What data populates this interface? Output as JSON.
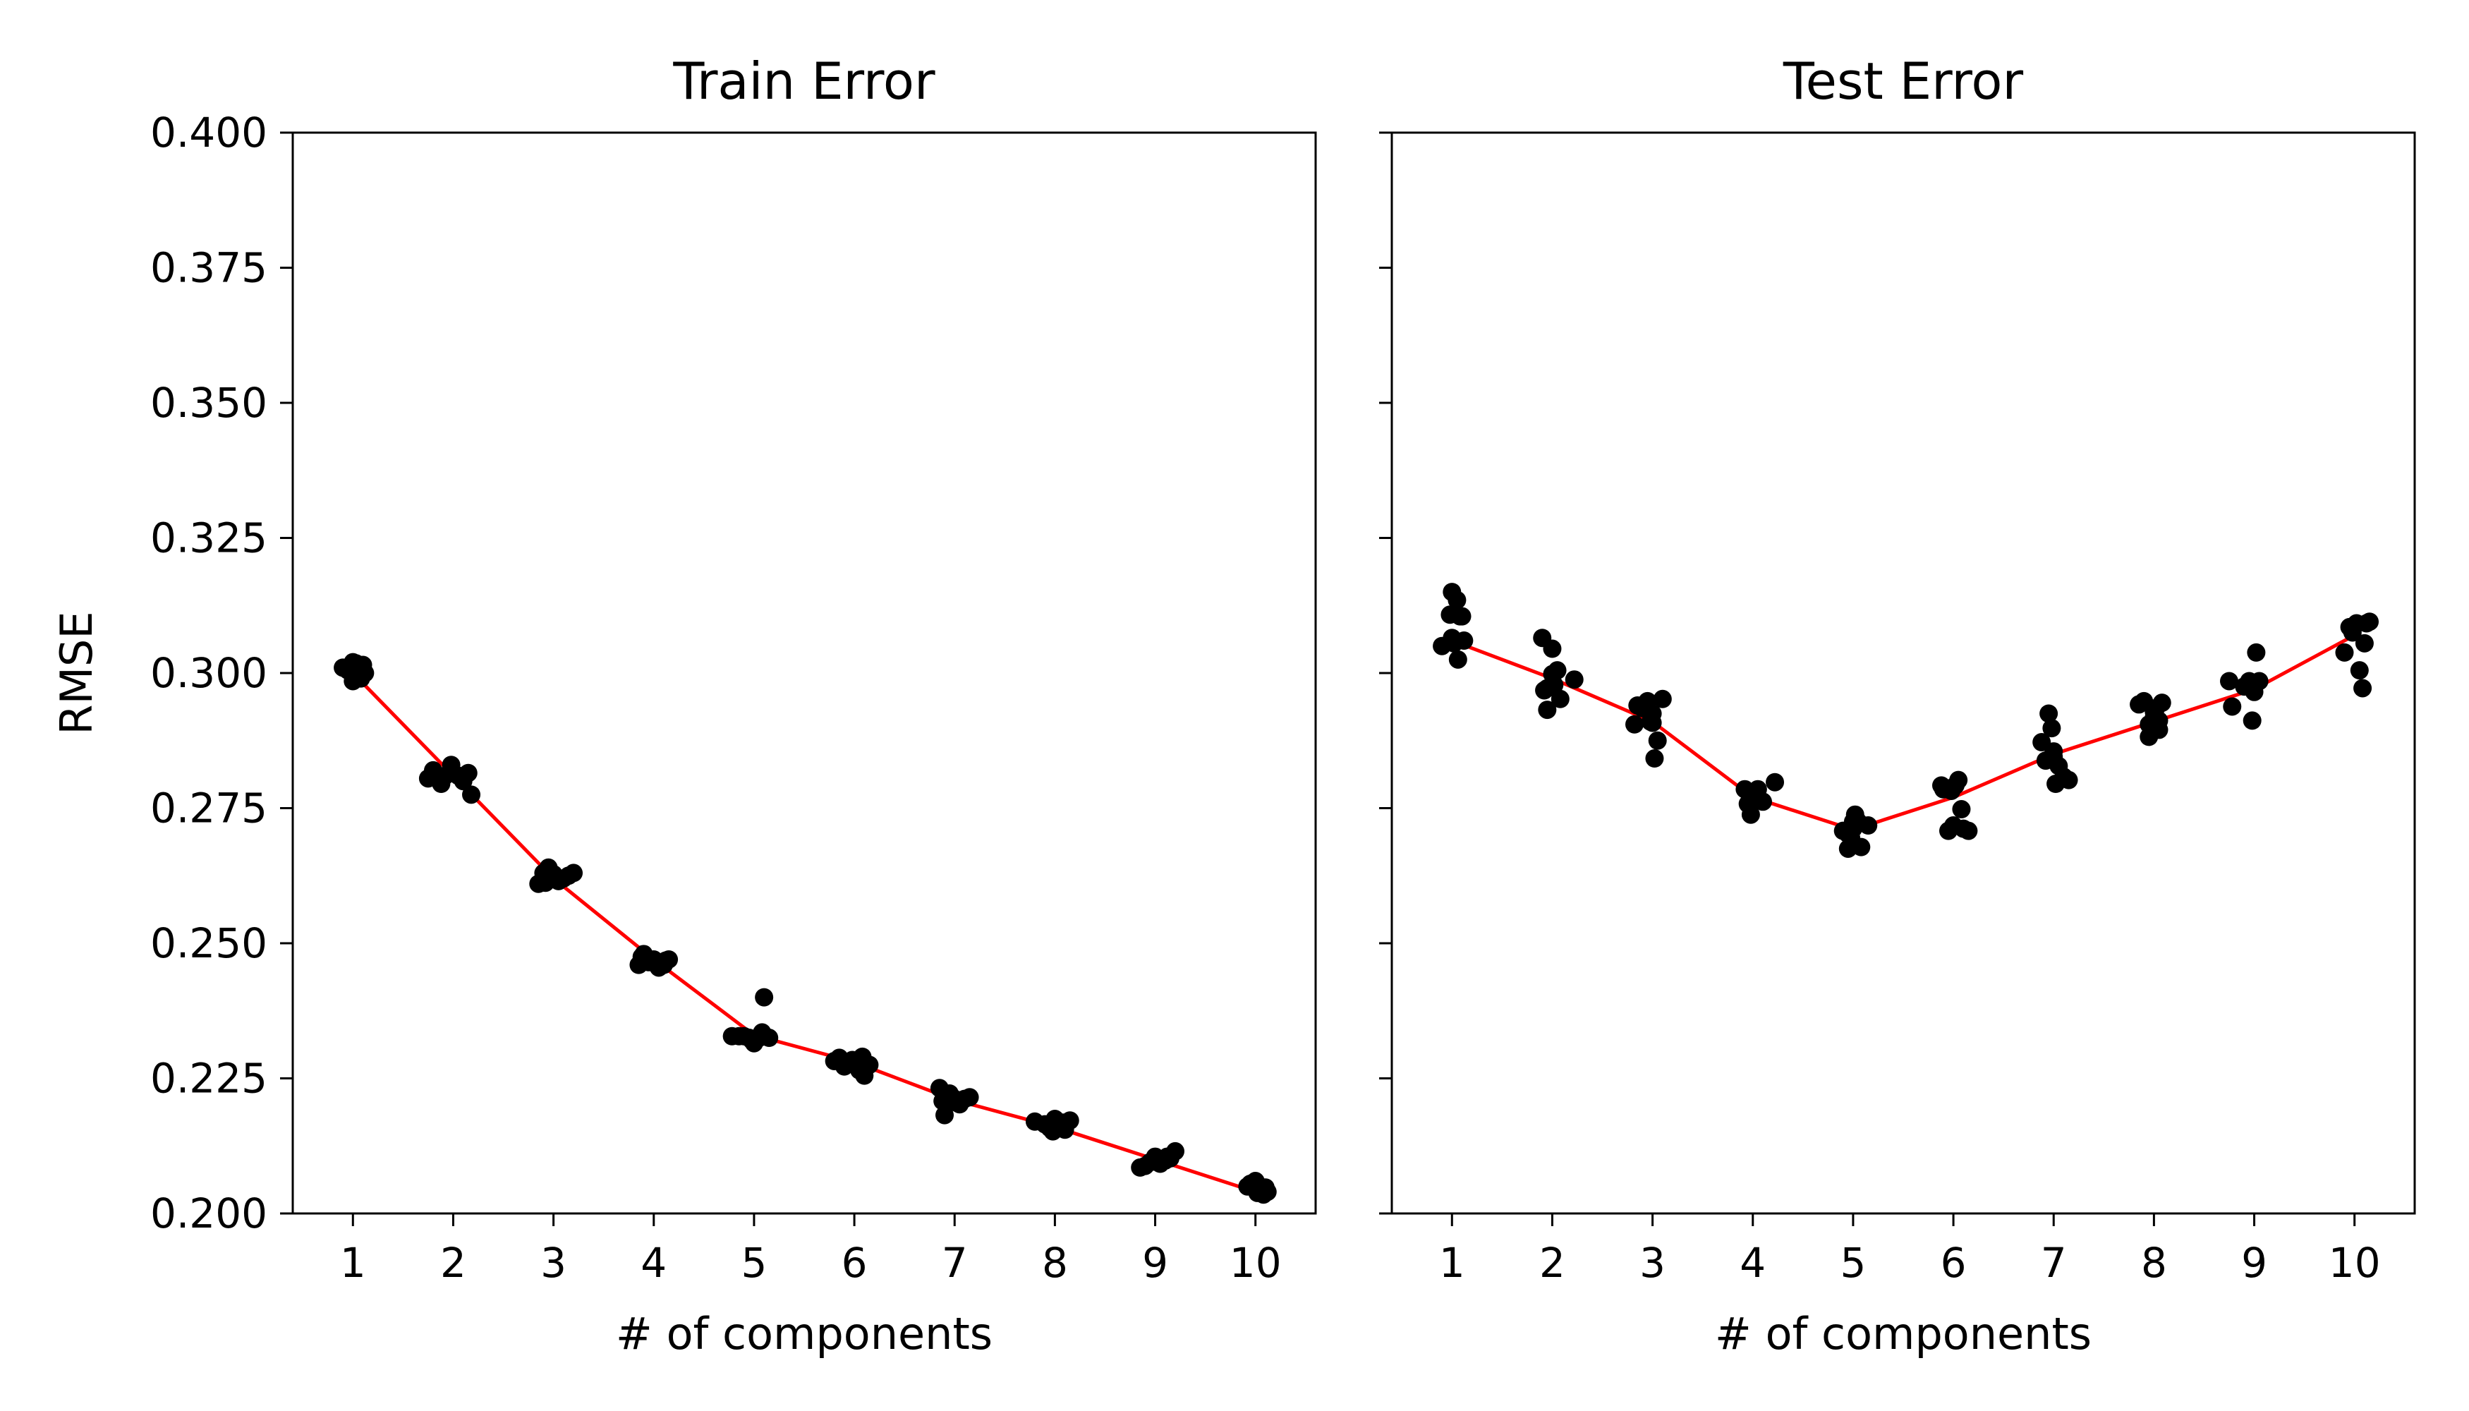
{
  "figure": {
    "colors": {
      "mean_line": "#ff0000",
      "points": "#000000",
      "axes": "#000000",
      "background": "#ffffff"
    }
  },
  "chart_data": [
    {
      "type": "scatter",
      "title": "Train Error",
      "xlabel": "# of components",
      "ylabel": "RMSE",
      "xlim": [
        0.4,
        10.6
      ],
      "ylim": [
        0.2,
        0.4
      ],
      "xticks": [
        1,
        2,
        3,
        4,
        5,
        6,
        7,
        8,
        9,
        10
      ],
      "yticks": [
        "0.200",
        "0.225",
        "0.250",
        "0.275",
        "0.300",
        "0.325",
        "0.350",
        "0.375",
        "0.400"
      ],
      "grid": false,
      "mean_line": {
        "x": [
          1,
          2,
          3,
          4,
          5,
          6,
          7,
          8,
          9,
          10
        ],
        "y": [
          0.3,
          0.281,
          0.262,
          0.247,
          0.233,
          0.228,
          0.221,
          0.216,
          0.21,
          0.204
        ]
      },
      "points": {
        "x": [
          0.9,
          0.95,
          1.0,
          1.05,
          1.1,
          1.0,
          1.08,
          0.97,
          1.12,
          1.03,
          1.75,
          1.8,
          1.88,
          1.92,
          1.98,
          2.05,
          2.1,
          2.15,
          1.85,
          2.18,
          2.85,
          2.9,
          2.95,
          3.0,
          3.05,
          3.1,
          3.15,
          3.2,
          2.92,
          3.0,
          3.85,
          3.9,
          3.95,
          4.0,
          4.05,
          4.1,
          4.15,
          3.88,
          4.02,
          4.12,
          4.78,
          4.85,
          4.9,
          4.95,
          5.0,
          5.05,
          5.1,
          5.15,
          5.08,
          4.98,
          5.8,
          5.85,
          5.9,
          5.95,
          6.0,
          6.05,
          6.1,
          6.15,
          5.98,
          6.08,
          6.85,
          6.9,
          6.95,
          7.0,
          7.05,
          7.1,
          7.15,
          6.88,
          7.02,
          6.92,
          7.8,
          7.9,
          7.95,
          8.0,
          8.05,
          8.1,
          8.15,
          7.98,
          8.08,
          8.02,
          8.85,
          8.9,
          8.95,
          9.0,
          9.05,
          9.1,
          9.15,
          9.2,
          9.02,
          9.12,
          9.92,
          9.95,
          9.98,
          10.0,
          10.02,
          10.05,
          10.08,
          10.1,
          10.12,
          10.03
        ],
        "y": [
          0.301,
          0.3005,
          0.302,
          0.299,
          0.3015,
          0.2985,
          0.299,
          0.3005,
          0.3,
          0.3018,
          0.2805,
          0.282,
          0.2795,
          0.281,
          0.283,
          0.281,
          0.28,
          0.2815,
          0.2808,
          0.2775,
          0.261,
          0.263,
          0.264,
          0.262,
          0.2615,
          0.262,
          0.2625,
          0.263,
          0.2612,
          0.2628,
          0.246,
          0.248,
          0.2465,
          0.247,
          0.2455,
          0.246,
          0.247,
          0.2475,
          0.2462,
          0.2468,
          0.2328,
          0.2328,
          0.2328,
          0.2325,
          0.2315,
          0.2325,
          0.24,
          0.2325,
          0.2335,
          0.232,
          0.2282,
          0.2288,
          0.2272,
          0.228,
          0.2278,
          0.2265,
          0.2255,
          0.2275,
          0.2284,
          0.229,
          0.2232,
          0.2182,
          0.2222,
          0.2212,
          0.2202,
          0.2212,
          0.2215,
          0.2208,
          0.2205,
          0.2218,
          0.217,
          0.2165,
          0.2158,
          0.2175,
          0.2162,
          0.2155,
          0.2172,
          0.2152,
          0.2168,
          0.216,
          0.2085,
          0.2088,
          0.2095,
          0.2105,
          0.2092,
          0.2098,
          0.2102,
          0.2115,
          0.2095,
          0.2105,
          0.205,
          0.2055,
          0.2048,
          0.206,
          0.2038,
          0.2043,
          0.2035,
          0.2048,
          0.204,
          0.2052
        ]
      }
    },
    {
      "type": "scatter",
      "title": "Test Error",
      "xlabel": "# of components",
      "ylabel": "",
      "xlim": [
        0.4,
        10.6
      ],
      "ylim": [
        0.2,
        0.4
      ],
      "xticks": [
        1,
        2,
        3,
        4,
        5,
        6,
        7,
        8,
        9,
        10
      ],
      "yticks": [],
      "grid": false,
      "mean_line": {
        "x": [
          1,
          2,
          3,
          4,
          5,
          6,
          7,
          8,
          9,
          10
        ],
        "y": [
          0.306,
          0.299,
          0.291,
          0.277,
          0.271,
          0.277,
          0.285,
          0.291,
          0.297,
          0.307
        ]
      },
      "points": {
        "x": [
          0.9,
          1.0,
          1.05,
          1.1,
          1.12,
          1.0,
          1.02,
          1.06,
          0.98,
          1.08,
          1.9,
          1.92,
          1.95,
          2.0,
          2.02,
          2.05,
          2.08,
          2.22,
          1.95,
          2.0,
          2.82,
          2.85,
          2.9,
          2.95,
          3.0,
          3.02,
          3.05,
          3.1,
          2.98,
          3.0,
          3.92,
          3.95,
          3.98,
          4.0,
          4.02,
          4.05,
          4.1,
          4.22,
          3.98,
          4.0,
          4.9,
          4.95,
          4.98,
          5.0,
          5.02,
          5.05,
          5.08,
          5.15,
          5.0,
          4.95,
          5.88,
          5.9,
          5.95,
          5.98,
          6.0,
          6.02,
          6.05,
          6.08,
          6.1,
          6.15,
          6.88,
          6.92,
          6.95,
          6.98,
          7.0,
          7.02,
          7.05,
          7.1,
          7.15,
          7.0,
          7.85,
          7.9,
          7.95,
          8.0,
          8.02,
          8.05,
          8.08,
          7.95,
          8.0,
          8.05,
          8.75,
          8.78,
          8.9,
          8.95,
          8.98,
          9.0,
          9.02,
          9.05,
          8.95,
          9.0,
          9.9,
          9.95,
          9.98,
          10.0,
          10.02,
          10.05,
          10.08,
          10.1,
          10.12,
          10.15
        ],
        "y": [
          0.305,
          0.315,
          0.3135,
          0.3105,
          0.306,
          0.3065,
          0.3055,
          0.3025,
          0.3108,
          0.3105,
          0.3065,
          0.2968,
          0.2932,
          0.3045,
          0.2978,
          0.3005,
          0.2952,
          0.2988,
          0.2972,
          0.2998,
          0.2905,
          0.294,
          0.2935,
          0.2948,
          0.2908,
          0.2842,
          0.2875,
          0.2952,
          0.291,
          0.2925,
          0.2785,
          0.2758,
          0.2738,
          0.2778,
          0.2768,
          0.2785,
          0.2762,
          0.2798,
          0.2758,
          0.2772,
          0.2708,
          0.2675,
          0.2695,
          0.2725,
          0.2738,
          0.2725,
          0.2678,
          0.2718,
          0.2712,
          0.2702,
          0.2792,
          0.2785,
          0.2708,
          0.2782,
          0.2718,
          0.2792,
          0.2802,
          0.2748,
          0.2712,
          0.2708,
          0.2872,
          0.2838,
          0.2925,
          0.2898,
          0.2845,
          0.2795,
          0.2828,
          0.2808,
          0.2802,
          0.2855,
          0.2942,
          0.2948,
          0.2882,
          0.2918,
          0.2935,
          0.2895,
          0.2945,
          0.2905,
          0.2928,
          0.2912,
          0.2985,
          0.2938,
          0.2975,
          0.2985,
          0.2912,
          0.2965,
          0.3038,
          0.2985,
          0.2975,
          0.2978,
          0.3038,
          0.3085,
          0.3075,
          0.3088,
          0.3092,
          0.3005,
          0.2972,
          0.3055,
          0.3092,
          0.3095
        ]
      }
    }
  ]
}
